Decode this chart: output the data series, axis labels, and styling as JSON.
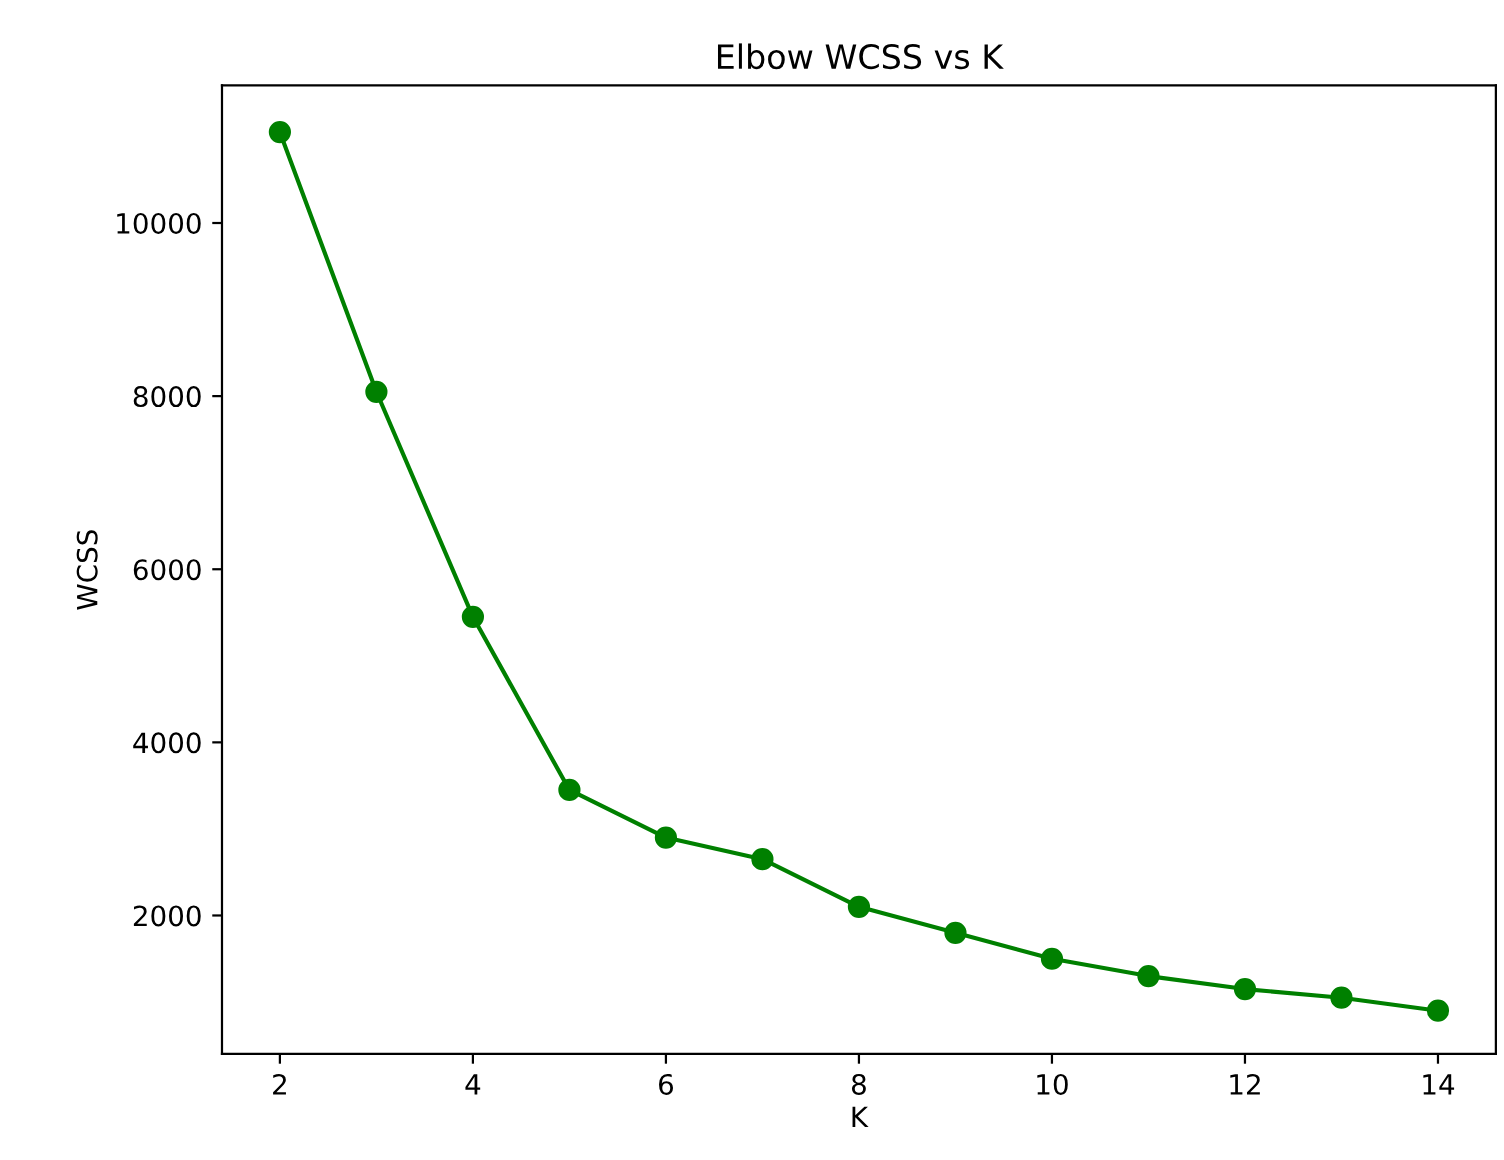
{
  "chart_data": {
    "type": "line",
    "title": "Elbow WCSS vs K",
    "xlabel": "K",
    "ylabel": "WCSS",
    "x": [
      2,
      3,
      4,
      5,
      6,
      7,
      8,
      9,
      10,
      11,
      12,
      13,
      14
    ],
    "series": [
      {
        "color": "#008000",
        "values": [
          11050,
          8050,
          5450,
          3450,
          2900,
          2650,
          2100,
          1800,
          1500,
          1300,
          1150,
          1050,
          900
        ]
      }
    ],
    "xlim": [
      1.4,
      14.6
    ],
    "ylim": [
      400,
      11590
    ],
    "xticks": [
      2,
      4,
      6,
      8,
      10,
      12,
      14
    ],
    "yticks": [
      2000,
      4000,
      6000,
      8000,
      10000
    ],
    "marker": "circle",
    "line_style": "solid"
  }
}
